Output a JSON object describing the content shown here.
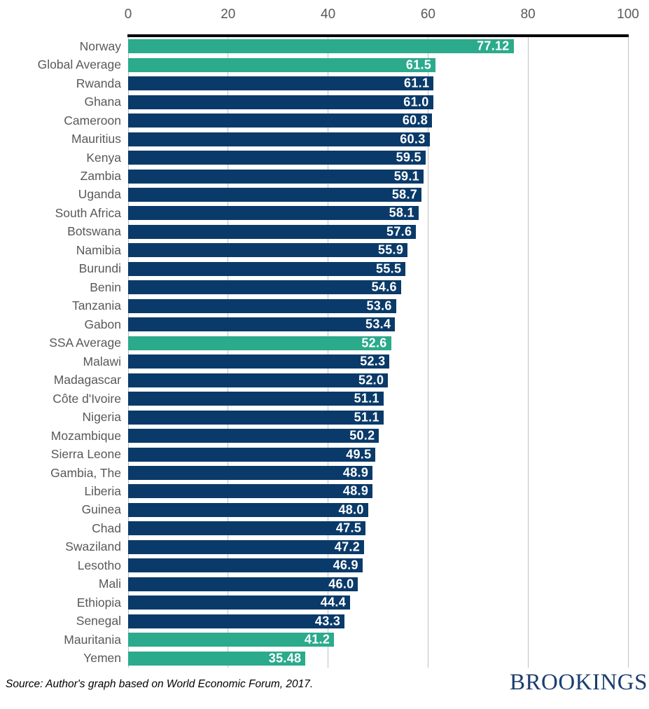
{
  "chart_data": {
    "type": "bar",
    "orientation": "horizontal",
    "title": "",
    "xlabel": "",
    "ylabel": "",
    "xlim": [
      0,
      100
    ],
    "x_ticks": [
      "0",
      "20",
      "40",
      "60",
      "80",
      "100"
    ],
    "grid": true,
    "legend": false,
    "series": [
      {
        "label": "Norway",
        "value": 77.12,
        "display": "77.12",
        "highlight": true
      },
      {
        "label": "Global Average",
        "value": 61.5,
        "display": "61.5",
        "highlight": true
      },
      {
        "label": "Rwanda",
        "value": 61.1,
        "display": "61.1",
        "highlight": false
      },
      {
        "label": "Ghana",
        "value": 61.0,
        "display": "61.0",
        "highlight": false
      },
      {
        "label": "Cameroon",
        "value": 60.8,
        "display": "60.8",
        "highlight": false
      },
      {
        "label": "Mauritius",
        "value": 60.3,
        "display": "60.3",
        "highlight": false
      },
      {
        "label": "Kenya",
        "value": 59.5,
        "display": "59.5",
        "highlight": false
      },
      {
        "label": "Zambia",
        "value": 59.1,
        "display": "59.1",
        "highlight": false
      },
      {
        "label": "Uganda",
        "value": 58.7,
        "display": "58.7",
        "highlight": false
      },
      {
        "label": "South Africa",
        "value": 58.1,
        "display": "58.1",
        "highlight": false
      },
      {
        "label": "Botswana",
        "value": 57.6,
        "display": "57.6",
        "highlight": false
      },
      {
        "label": "Namibia",
        "value": 55.9,
        "display": "55.9",
        "highlight": false
      },
      {
        "label": "Burundi",
        "value": 55.5,
        "display": "55.5",
        "highlight": false
      },
      {
        "label": "Benin",
        "value": 54.6,
        "display": "54.6",
        "highlight": false
      },
      {
        "label": "Tanzania",
        "value": 53.6,
        "display": "53.6",
        "highlight": false
      },
      {
        "label": "Gabon",
        "value": 53.4,
        "display": "53.4",
        "highlight": false
      },
      {
        "label": "SSA Average",
        "value": 52.6,
        "display": "52.6",
        "highlight": true
      },
      {
        "label": "Malawi",
        "value": 52.3,
        "display": "52.3",
        "highlight": false
      },
      {
        "label": "Madagascar",
        "value": 52.0,
        "display": "52.0",
        "highlight": false
      },
      {
        "label": "Côte d'Ivoire",
        "value": 51.1,
        "display": "51.1",
        "highlight": false
      },
      {
        "label": "Nigeria",
        "value": 51.1,
        "display": "51.1",
        "highlight": false
      },
      {
        "label": "Mozambique",
        "value": 50.2,
        "display": "50.2",
        "highlight": false
      },
      {
        "label": "Sierra Leone",
        "value": 49.5,
        "display": "49.5",
        "highlight": false
      },
      {
        "label": "Gambia, The",
        "value": 48.9,
        "display": "48.9",
        "highlight": false
      },
      {
        "label": "Liberia",
        "value": 48.9,
        "display": "48.9",
        "highlight": false
      },
      {
        "label": "Guinea",
        "value": 48.0,
        "display": "48.0",
        "highlight": false
      },
      {
        "label": "Chad",
        "value": 47.5,
        "display": "47.5",
        "highlight": false
      },
      {
        "label": "Swaziland",
        "value": 47.2,
        "display": "47.2",
        "highlight": false
      },
      {
        "label": "Lesotho",
        "value": 46.9,
        "display": "46.9",
        "highlight": false
      },
      {
        "label": "Mali",
        "value": 46.0,
        "display": "46.0",
        "highlight": false
      },
      {
        "label": "Ethiopia",
        "value": 44.4,
        "display": "44.4",
        "highlight": false
      },
      {
        "label": "Senegal",
        "value": 43.3,
        "display": "43.3",
        "highlight": false
      },
      {
        "label": "Mauritania",
        "value": 41.2,
        "display": "41.2",
        "highlight": true
      },
      {
        "label": "Yemen",
        "value": 35.48,
        "display": "35.48",
        "highlight": true
      }
    ],
    "colors": {
      "bar_default": "#0A3A69",
      "bar_highlight": "#2BAA8C",
      "value_label": "#FFFFFF",
      "category_label": "#595959",
      "tick_label": "#595959",
      "gridline": "#BFBFBF",
      "axis_line": "#000000"
    }
  },
  "footer": {
    "source_note": "Source: Author's graph based on World Economic Forum, 2017.",
    "logo_text": "BROOKINGS",
    "logo_color": "#1B3E6F"
  }
}
